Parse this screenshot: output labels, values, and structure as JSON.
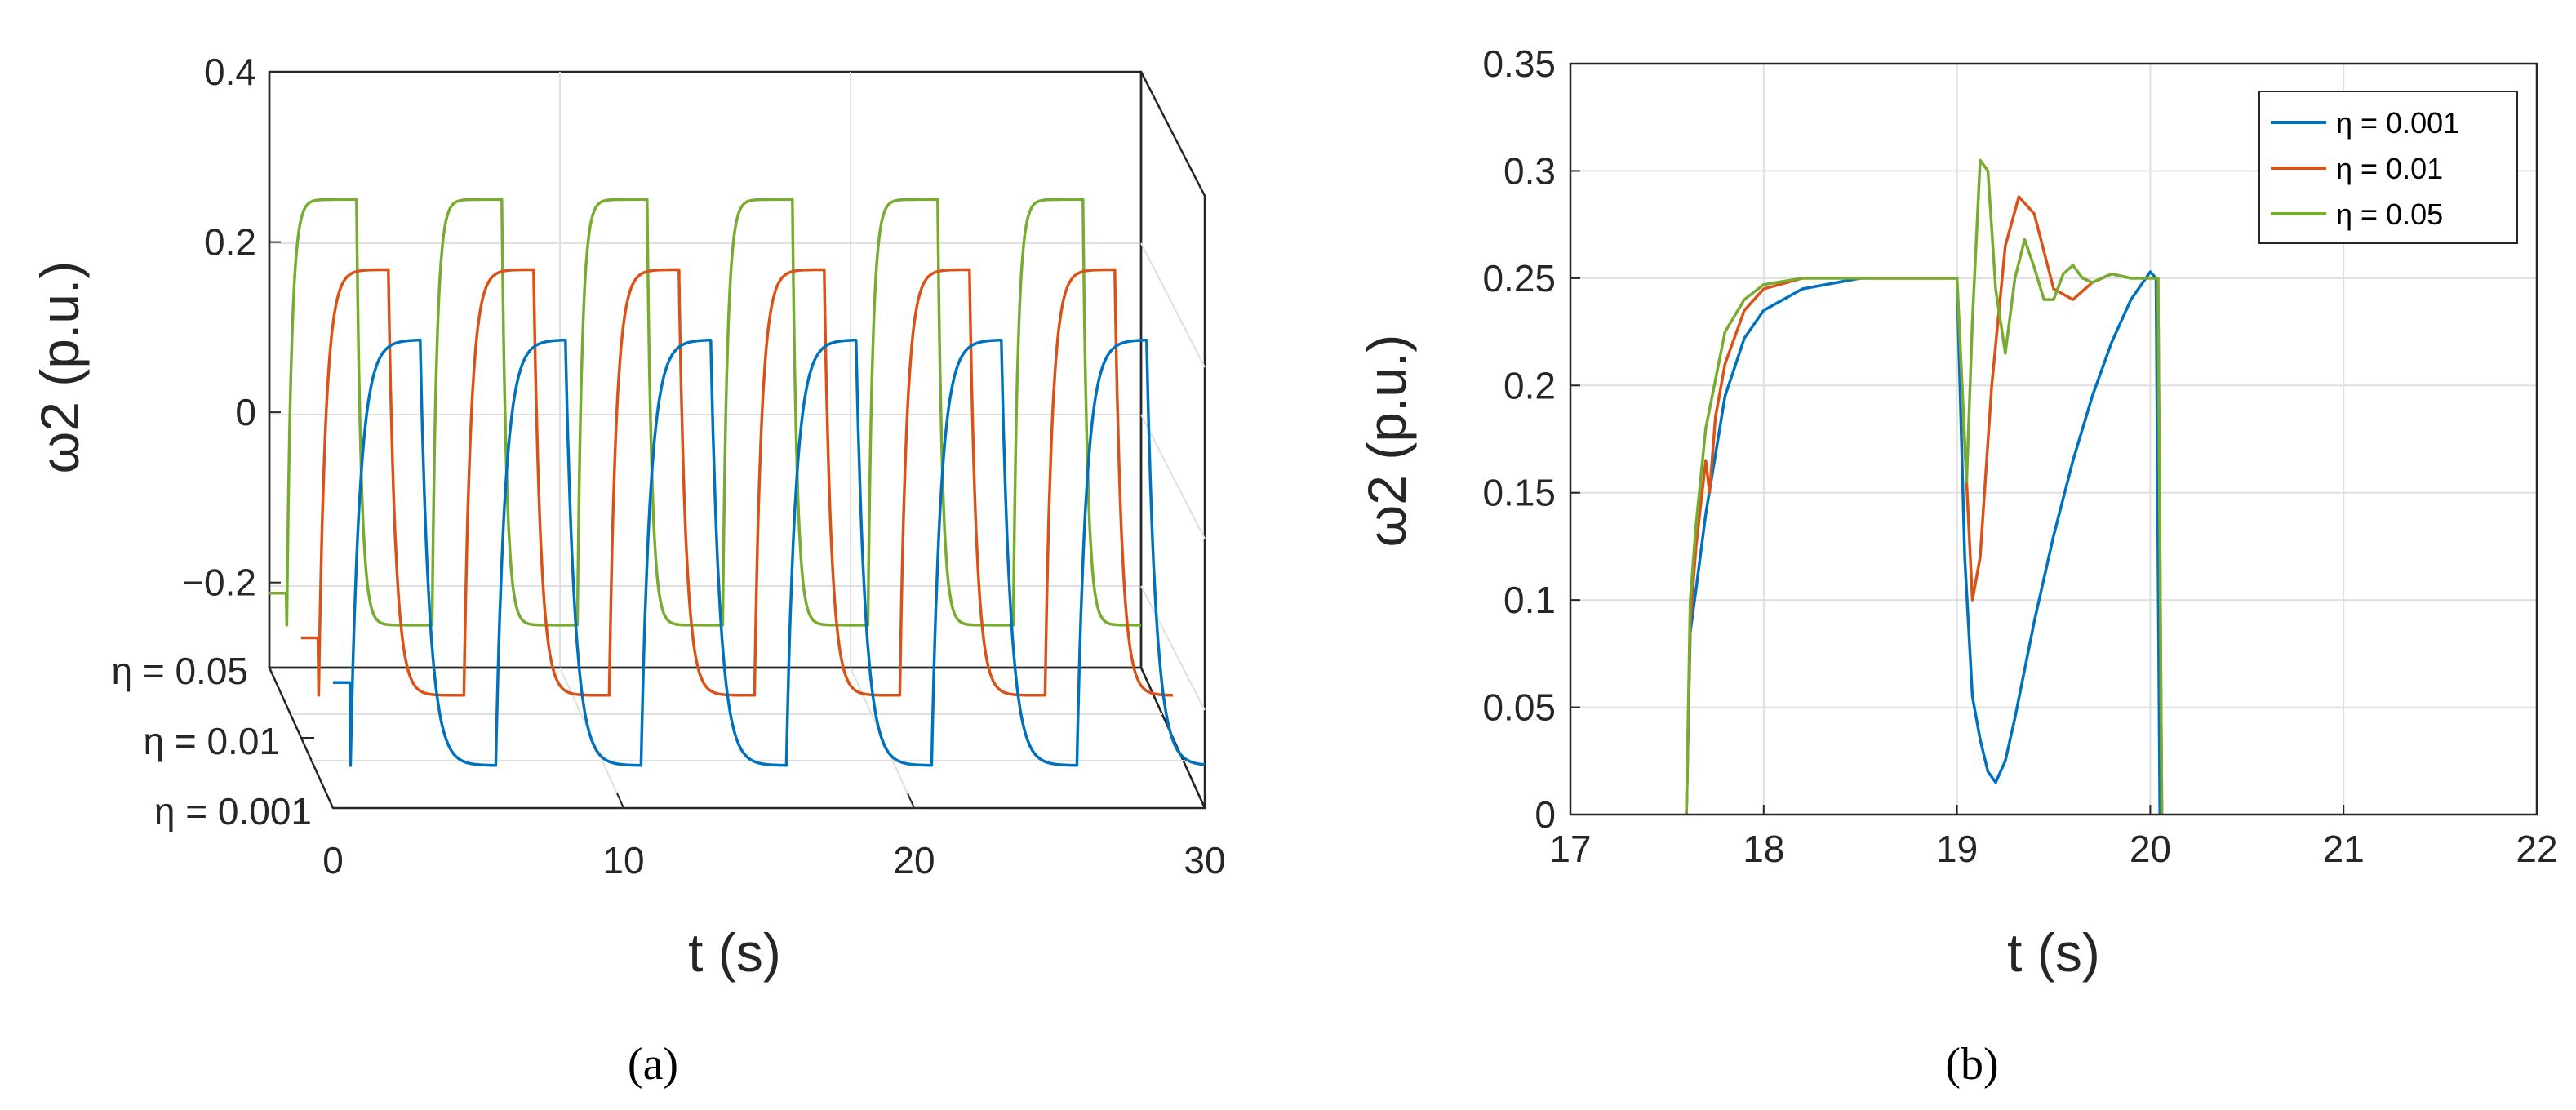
{
  "colors": {
    "blue": "#0072BD",
    "orange": "#D95319",
    "green": "#77AC30"
  },
  "chart_data": [
    {
      "panel": "(a)",
      "type": "line",
      "view": "3d",
      "xlabel": "t (s)",
      "zlabel": "ω2 (p.u.)",
      "xlim": [
        0,
        30
      ],
      "zlim": [
        -0.3,
        0.4
      ],
      "x_ticks": [
        "0",
        "10",
        "20",
        "30"
      ],
      "z_ticks": [
        "−0.2",
        "0",
        "0.2",
        "0.4"
      ],
      "y_ticks": [
        "η = 0.05",
        "η = 0.01",
        "η = 0.001"
      ],
      "square_wave": {
        "period_s": 5,
        "low": -0.25,
        "high": 0.25,
        "switch_up_s": [
          0.6,
          5.6,
          10.6,
          15.6,
          20.6,
          25.6
        ],
        "switch_down_s": [
          3.0,
          8.0,
          13.0,
          18.0,
          23.0,
          28.0
        ]
      },
      "series": [
        {
          "name": "η = 0.001",
          "color": "blue",
          "time_constant_s": 0.08
        },
        {
          "name": "η = 0.01",
          "color": "orange",
          "time_constant_s": 0.06
        },
        {
          "name": "η = 0.05",
          "color": "green",
          "time_constant_s": 0.04
        }
      ]
    },
    {
      "panel": "(b)",
      "type": "line",
      "xlabel": "t (s)",
      "ylabel": "ω2 (p.u.)",
      "xlim": [
        17,
        22
      ],
      "ylim": [
        0,
        0.35
      ],
      "grid": true,
      "legend_position": "top-right",
      "x_ticks": [
        "17",
        "18",
        "19",
        "20",
        "21",
        "22"
      ],
      "y_ticks": [
        "0",
        "0.05",
        "0.1",
        "0.15",
        "0.2",
        "0.25",
        "0.3",
        "0.35"
      ],
      "series": [
        {
          "name": "η = 0.001",
          "color": "blue",
          "x": [
            17.6,
            17.62,
            17.65,
            17.7,
            17.8,
            17.9,
            18.0,
            18.2,
            18.5,
            19.0,
            19.04,
            19.08,
            19.12,
            19.16,
            19.2,
            19.25,
            19.3,
            19.4,
            19.5,
            19.6,
            19.7,
            19.8,
            19.9,
            20.0,
            20.03,
            20.05
          ],
          "y": [
            0.0,
            0.085,
            0.105,
            0.14,
            0.195,
            0.222,
            0.235,
            0.245,
            0.25,
            0.25,
            0.12,
            0.055,
            0.035,
            0.02,
            0.015,
            0.025,
            0.045,
            0.09,
            0.13,
            0.165,
            0.195,
            0.22,
            0.24,
            0.253,
            0.25,
            0.0
          ]
        },
        {
          "name": "η = 0.01",
          "color": "orange",
          "x": [
            17.6,
            17.62,
            17.65,
            17.7,
            17.72,
            17.75,
            17.8,
            17.9,
            18.0,
            18.2,
            19.0,
            19.05,
            19.08,
            19.12,
            19.18,
            19.25,
            19.32,
            19.4,
            19.5,
            19.6,
            19.7,
            19.8,
            19.9,
            20.0,
            20.04,
            20.06
          ],
          "y": [
            0.0,
            0.09,
            0.125,
            0.165,
            0.15,
            0.185,
            0.21,
            0.235,
            0.245,
            0.25,
            0.25,
            0.155,
            0.1,
            0.12,
            0.2,
            0.265,
            0.288,
            0.28,
            0.245,
            0.24,
            0.248,
            0.252,
            0.25,
            0.25,
            0.25,
            0.0
          ]
        },
        {
          "name": "η = 0.05",
          "color": "green",
          "x": [
            17.6,
            17.62,
            17.65,
            17.7,
            17.8,
            17.9,
            18.0,
            18.2,
            19.0,
            19.05,
            19.08,
            19.12,
            19.16,
            19.2,
            19.25,
            19.3,
            19.35,
            19.4,
            19.45,
            19.5,
            19.55,
            19.6,
            19.65,
            19.7,
            19.8,
            19.9,
            20.0,
            20.04,
            20.06
          ],
          "y": [
            0.0,
            0.1,
            0.135,
            0.18,
            0.225,
            0.24,
            0.247,
            0.25,
            0.25,
            0.155,
            0.23,
            0.305,
            0.3,
            0.245,
            0.215,
            0.25,
            0.268,
            0.255,
            0.24,
            0.24,
            0.252,
            0.256,
            0.25,
            0.248,
            0.252,
            0.25,
            0.25,
            0.25,
            0.0
          ]
        }
      ]
    }
  ]
}
